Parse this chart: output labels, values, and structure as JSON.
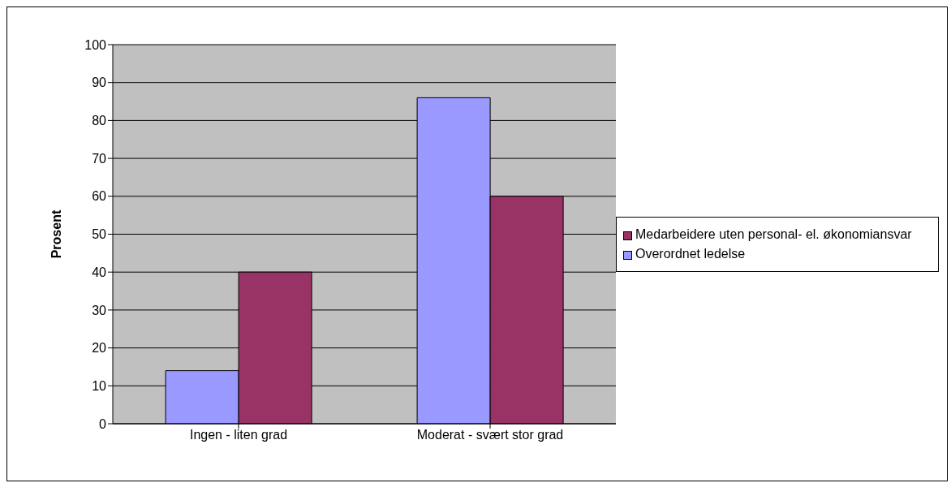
{
  "chart_data": {
    "type": "bar",
    "ylabel": "Prosent",
    "categories": [
      "Ingen - liten grad",
      "Moderat - svært stor grad"
    ],
    "series": [
      {
        "name": "Overordnet ledelse",
        "color": "#9999ff",
        "values": [
          14,
          86
        ]
      },
      {
        "name": "Medarbeidere uten personal- el. økonomiansvar",
        "color": "#993366",
        "values": [
          40,
          60
        ]
      }
    ],
    "ylim": [
      0,
      100
    ],
    "yticks": [
      0,
      10,
      20,
      30,
      40,
      50,
      60,
      70,
      80,
      90,
      100
    ],
    "grid": "y",
    "legend": "right"
  }
}
